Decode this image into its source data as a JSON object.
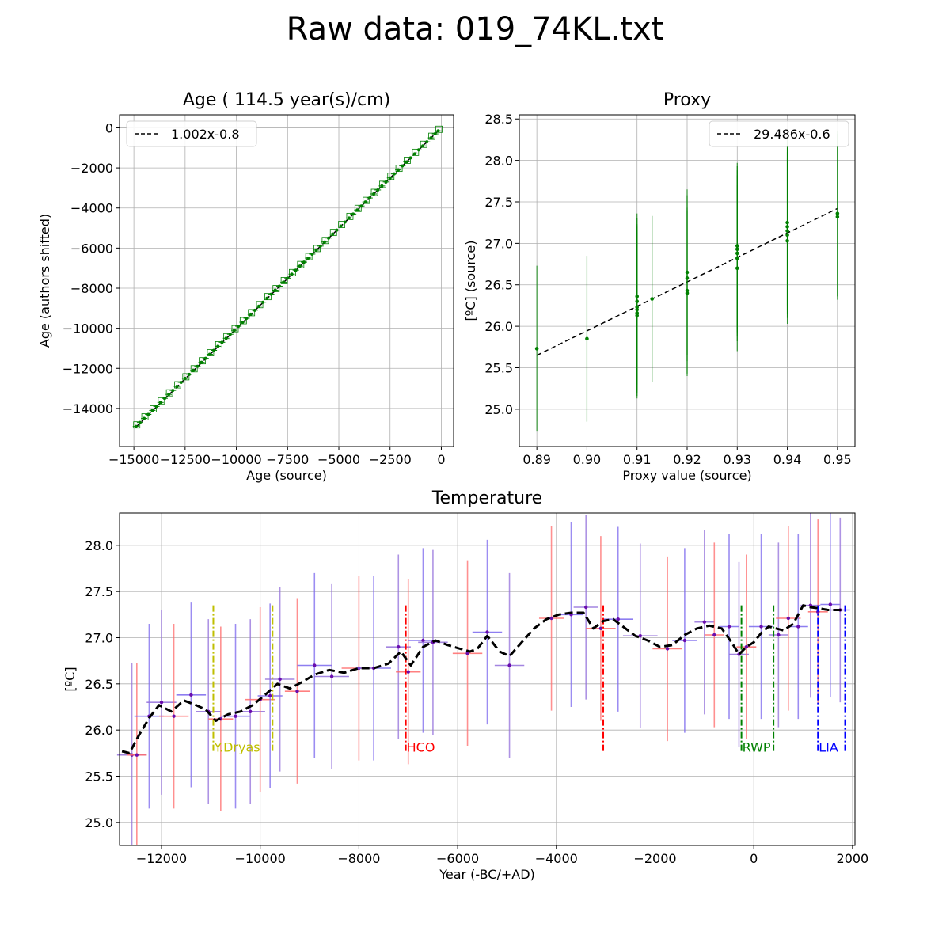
{
  "figure": {
    "title": "Raw data: 019_74KL.txt"
  },
  "chart_data": [
    {
      "type": "scatter",
      "title": "Age ( 114.5 year(s)/cm)",
      "xlabel": "Age (source)",
      "ylabel": "Age (authors shifted)",
      "xlim": [
        -15700,
        600
      ],
      "ylim": [
        -15900,
        650
      ],
      "xticks": [
        -15000,
        -12500,
        -10000,
        -7500,
        -5000,
        -2500,
        0
      ],
      "xtick_labels": [
        "−15000",
        "−12500",
        "−10000",
        "−7500",
        "−5000",
        "−2500",
        "0"
      ],
      "yticks": [
        0,
        -2000,
        -4000,
        -6000,
        -8000,
        -10000,
        -12000,
        -14000
      ],
      "ytick_labels": [
        "0",
        "−2000",
        "−4000",
        "−6000",
        "−8000",
        "−10000",
        "−12000",
        "−14000"
      ],
      "grid": true,
      "legend": {
        "location": "upper-left",
        "entries": [
          "1.002x-0.8"
        ]
      },
      "fit": {
        "slope": 1.002,
        "intercept": -0.8,
        "x_range": [
          -14900,
          -150
        ]
      },
      "points_x": [
        -14900,
        -14700,
        -14500,
        -14300,
        -14100,
        -13900,
        -13700,
        -13500,
        -13300,
        -13100,
        -12900,
        -12700,
        -12500,
        -12300,
        -12100,
        -11900,
        -11700,
        -11500,
        -11300,
        -11100,
        -10900,
        -10700,
        -10500,
        -10300,
        -10100,
        -9900,
        -9700,
        -9500,
        -9300,
        -9100,
        -8900,
        -8700,
        -8500,
        -8300,
        -8100,
        -7900,
        -7700,
        -7500,
        -7300,
        -7100,
        -6900,
        -6700,
        -6500,
        -6300,
        -6100,
        -5900,
        -5700,
        -5500,
        -5300,
        -5100,
        -4900,
        -4700,
        -4500,
        -4300,
        -4100,
        -3900,
        -3700,
        -3500,
        -3300,
        -3100,
        -2900,
        -2700,
        -2500,
        -2300,
        -2100,
        -1900,
        -1700,
        -1500,
        -1300,
        -1100,
        -900,
        -700,
        -500,
        -300,
        -150
      ],
      "colors": {
        "points": "#008000",
        "fit": "#000000"
      }
    },
    {
      "type": "scatter",
      "title": "Proxy",
      "xlabel": "Proxy value (source)",
      "ylabel": "[ºC] (source)",
      "xlim": [
        0.8865,
        0.9535
      ],
      "ylim": [
        24.55,
        28.55
      ],
      "xticks": [
        0.89,
        0.9,
        0.91,
        0.92,
        0.93,
        0.94,
        0.95
      ],
      "xtick_labels": [
        "0.89",
        "0.90",
        "0.91",
        "0.92",
        "0.93",
        "0.94",
        "0.95"
      ],
      "yticks": [
        25.0,
        25.5,
        26.0,
        26.5,
        27.0,
        27.5,
        28.0,
        28.5
      ],
      "ytick_labels": [
        "25.0",
        "25.5",
        "26.0",
        "26.5",
        "27.0",
        "27.5",
        "28.0",
        "28.5"
      ],
      "grid": true,
      "legend": {
        "location": "upper-right",
        "entries": [
          "29.486x-0.6"
        ]
      },
      "fit": {
        "x_range": [
          0.89,
          0.95
        ],
        "y_range": [
          25.65,
          27.42
        ]
      },
      "points": [
        {
          "x": 0.89,
          "y": 25.73,
          "err": 1.0
        },
        {
          "x": 0.9,
          "y": 25.85,
          "err": 1.0
        },
        {
          "x": 0.91,
          "y": 26.13,
          "err": 1.0
        },
        {
          "x": 0.91,
          "y": 26.16,
          "err": 1.0
        },
        {
          "x": 0.91,
          "y": 26.2,
          "err": 1.0
        },
        {
          "x": 0.91,
          "y": 26.23,
          "err": 1.0
        },
        {
          "x": 0.91,
          "y": 26.3,
          "err": 1.0
        },
        {
          "x": 0.91,
          "y": 26.36,
          "err": 1.0
        },
        {
          "x": 0.913,
          "y": 26.33,
          "err": 1.0
        },
        {
          "x": 0.92,
          "y": 26.4,
          "err": 1.0
        },
        {
          "x": 0.92,
          "y": 26.43,
          "err": 1.0
        },
        {
          "x": 0.92,
          "y": 26.58,
          "err": 1.0
        },
        {
          "x": 0.92,
          "y": 26.65,
          "err": 1.0
        },
        {
          "x": 0.93,
          "y": 26.7,
          "err": 1.0
        },
        {
          "x": 0.93,
          "y": 26.82,
          "err": 1.0
        },
        {
          "x": 0.93,
          "y": 26.88,
          "err": 1.0
        },
        {
          "x": 0.93,
          "y": 26.93,
          "err": 1.0
        },
        {
          "x": 0.93,
          "y": 26.97,
          "err": 1.0
        },
        {
          "x": 0.94,
          "y": 27.03,
          "err": 1.0
        },
        {
          "x": 0.94,
          "y": 27.1,
          "err": 1.0
        },
        {
          "x": 0.94,
          "y": 27.15,
          "err": 1.0
        },
        {
          "x": 0.94,
          "y": 27.2,
          "err": 1.0
        },
        {
          "x": 0.94,
          "y": 27.25,
          "err": 1.0
        },
        {
          "x": 0.95,
          "y": 27.32,
          "err": 1.0
        },
        {
          "x": 0.95,
          "y": 27.36,
          "err": 1.0
        }
      ],
      "colors": {
        "points": "#008000",
        "fit": "#000000"
      }
    },
    {
      "type": "line",
      "title": "Temperature",
      "xlabel": "Year (-BC/+AD)",
      "ylabel": "[ºC]",
      "xlim": [
        -12850,
        2050
      ],
      "ylim": [
        24.75,
        28.35
      ],
      "xticks": [
        -12000,
        -10000,
        -8000,
        -6000,
        -4000,
        -2000,
        0,
        2000
      ],
      "xtick_labels": [
        "−12000",
        "−10000",
        "−8000",
        "−6000",
        "−4000",
        "−2000",
        "0",
        "2000"
      ],
      "yticks": [
        25.0,
        25.5,
        26.0,
        26.5,
        27.0,
        27.5,
        28.0
      ],
      "ytick_labels": [
        "25.0",
        "25.5",
        "26.0",
        "26.5",
        "27.0",
        "27.5",
        "28.0"
      ],
      "grid": true,
      "smooth_line": {
        "x": [
          -12800,
          -12650,
          -12450,
          -12250,
          -12050,
          -11800,
          -11550,
          -11300,
          -11100,
          -10900,
          -10650,
          -10400,
          -10150,
          -9900,
          -9650,
          -9400,
          -9150,
          -8900,
          -8600,
          -8300,
          -8000,
          -7700,
          -7400,
          -7150,
          -6950,
          -6700,
          -6450,
          -6200,
          -5950,
          -5750,
          -5600,
          -5400,
          -5150,
          -4950,
          -4700,
          -4450,
          -4200,
          -3950,
          -3700,
          -3450,
          -3250,
          -3050,
          -2850,
          -2650,
          -2400,
          -2150,
          -1900,
          -1650,
          -1400,
          -1150,
          -900,
          -650,
          -450,
          -300,
          -150,
          0,
          150,
          300,
          450,
          600,
          800,
          1000,
          1150,
          1300,
          1500,
          1700,
          1800
        ],
        "y": [
          25.77,
          25.75,
          25.95,
          26.13,
          26.27,
          26.2,
          26.32,
          26.27,
          26.22,
          26.1,
          26.17,
          26.2,
          26.27,
          26.38,
          26.5,
          26.45,
          26.52,
          26.6,
          26.65,
          26.62,
          26.67,
          26.67,
          26.72,
          26.85,
          26.7,
          26.9,
          26.97,
          26.92,
          26.88,
          26.85,
          26.88,
          27.02,
          26.85,
          26.8,
          26.95,
          27.1,
          27.2,
          27.25,
          27.27,
          27.27,
          27.1,
          27.18,
          27.2,
          27.12,
          27.02,
          26.97,
          26.9,
          26.92,
          27.03,
          27.1,
          27.13,
          27.1,
          26.95,
          26.82,
          26.9,
          26.95,
          27.05,
          27.12,
          27.1,
          27.08,
          27.15,
          27.35,
          27.33,
          27.32,
          27.3,
          27.3,
          27.3
        ]
      },
      "samples": [
        {
          "x": -12600,
          "y": 25.73,
          "xerr": 300,
          "err": 1.0
        },
        {
          "x": -12500,
          "y": 25.73,
          "xerr": 200,
          "err": 1.0
        },
        {
          "x": -12250,
          "y": 26.15,
          "xerr": 300,
          "err": 1.0
        },
        {
          "x": -12000,
          "y": 26.3,
          "xerr": 300,
          "err": 1.0
        },
        {
          "x": -11750,
          "y": 26.15,
          "xerr": 300,
          "err": 1.0
        },
        {
          "x": -11400,
          "y": 26.38,
          "xerr": 300,
          "err": 1.0
        },
        {
          "x": -11050,
          "y": 26.2,
          "xerr": 250,
          "err": 1.0
        },
        {
          "x": -10800,
          "y": 26.12,
          "xerr": 250,
          "err": 1.0
        },
        {
          "x": -10500,
          "y": 26.15,
          "xerr": 300,
          "err": 1.0
        },
        {
          "x": -10200,
          "y": 26.2,
          "xerr": 300,
          "err": 1.0
        },
        {
          "x": -10000,
          "y": 26.33,
          "xerr": 300,
          "err": 1.0
        },
        {
          "x": -9800,
          "y": 26.37,
          "xerr": 250,
          "err": 1.0
        },
        {
          "x": -9600,
          "y": 26.55,
          "xerr": 300,
          "err": 1.0
        },
        {
          "x": -9250,
          "y": 26.42,
          "xerr": 250,
          "err": 1.0
        },
        {
          "x": -8900,
          "y": 26.7,
          "xerr": 350,
          "err": 1.0
        },
        {
          "x": -8550,
          "y": 26.58,
          "xerr": 350,
          "err": 1.0
        },
        {
          "x": -8000,
          "y": 26.67,
          "xerr": 350,
          "err": 1.0
        },
        {
          "x": -7700,
          "y": 26.67,
          "xerr": 350,
          "err": 1.0
        },
        {
          "x": -7200,
          "y": 26.9,
          "xerr": 250,
          "err": 1.0
        },
        {
          "x": -7000,
          "y": 26.63,
          "xerr": 250,
          "err": 1.0
        },
        {
          "x": -6700,
          "y": 26.97,
          "xerr": 300,
          "err": 1.0
        },
        {
          "x": -6500,
          "y": 26.95,
          "xerr": 300,
          "err": 1.0
        },
        {
          "x": -5800,
          "y": 26.83,
          "xerr": 300,
          "err": 1.0
        },
        {
          "x": -5400,
          "y": 27.06,
          "xerr": 300,
          "err": 1.0
        },
        {
          "x": -4950,
          "y": 26.7,
          "xerr": 300,
          "err": 1.0
        },
        {
          "x": -4100,
          "y": 27.21,
          "xerr": 250,
          "err": 1.0
        },
        {
          "x": -3700,
          "y": 27.25,
          "xerr": 250,
          "err": 1.0
        },
        {
          "x": -3400,
          "y": 27.33,
          "xerr": 250,
          "err": 1.0
        },
        {
          "x": -3100,
          "y": 27.1,
          "xerr": 300,
          "err": 1.0
        },
        {
          "x": -2750,
          "y": 27.2,
          "xerr": 300,
          "err": 1.0
        },
        {
          "x": -2300,
          "y": 27.02,
          "xerr": 350,
          "err": 1.0
        },
        {
          "x": -1750,
          "y": 26.88,
          "xerr": 300,
          "err": 1.0
        },
        {
          "x": -1400,
          "y": 26.97,
          "xerr": 250,
          "err": 1.0
        },
        {
          "x": -1000,
          "y": 27.17,
          "xerr": 200,
          "err": 1.0
        },
        {
          "x": -800,
          "y": 27.03,
          "xerr": 200,
          "err": 1.0
        },
        {
          "x": -500,
          "y": 27.12,
          "xerr": 200,
          "err": 1.0
        },
        {
          "x": -300,
          "y": 26.82,
          "xerr": 200,
          "err": 1.0
        },
        {
          "x": -150,
          "y": 26.9,
          "xerr": 200,
          "err": 1.0
        },
        {
          "x": 150,
          "y": 27.12,
          "xerr": 250,
          "err": 1.0
        },
        {
          "x": 500,
          "y": 27.03,
          "xerr": 200,
          "err": 1.0
        },
        {
          "x": 700,
          "y": 27.21,
          "xerr": 250,
          "err": 1.0
        },
        {
          "x": 900,
          "y": 27.12,
          "xerr": 200,
          "err": 1.0
        },
        {
          "x": 1150,
          "y": 27.35,
          "xerr": 200,
          "err": 1.0
        },
        {
          "x": 1300,
          "y": 27.28,
          "xerr": 200,
          "err": 1.0
        },
        {
          "x": 1550,
          "y": 27.36,
          "xerr": 200,
          "err": 1.0
        },
        {
          "x": 1750,
          "y": 27.3,
          "xerr": 200,
          "err": 1.0
        }
      ],
      "periods": [
        {
          "label": "Y.Dryas",
          "start": -10950,
          "end": -9750,
          "color": "#bfbf00"
        },
        {
          "label": "HCO",
          "start": -7050,
          "end": -3050,
          "color": "#ff0000"
        },
        {
          "label": "RWP",
          "start": -250,
          "end": 400,
          "color": "#008000"
        },
        {
          "label": "LIA",
          "start": 1300,
          "end": 1850,
          "color": "#0000ff"
        }
      ],
      "colors": {
        "smooth_line": "#000000",
        "errorbar_a": "#9370db",
        "errorbar_b": "#ff6b6b",
        "errorbar_c": "#7b68ee"
      }
    }
  ]
}
